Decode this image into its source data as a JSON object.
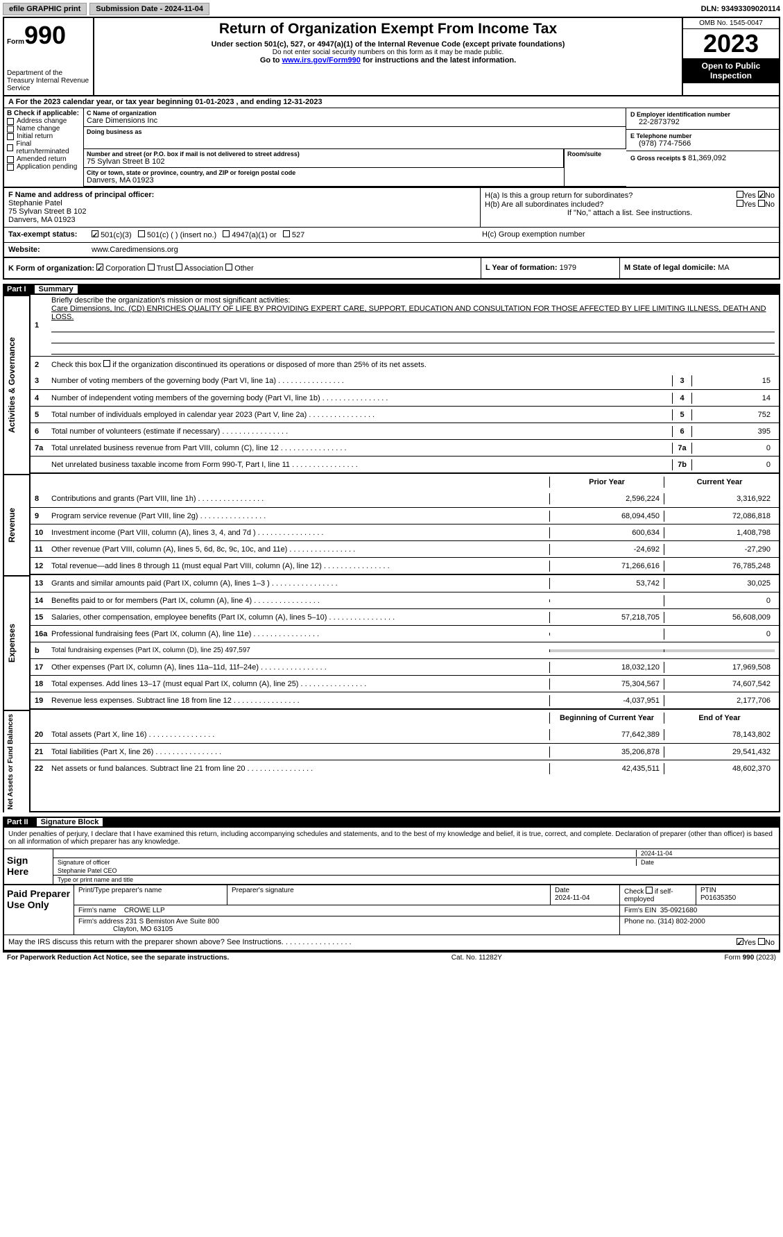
{
  "top": {
    "efile": "efile GRAPHIC print",
    "sub_date": "Submission Date - 2024-11-04",
    "dln": "DLN: 93493309020114"
  },
  "header": {
    "form_label": "Form",
    "form_no": "990",
    "dept": "Department of the Treasury\nInternal Revenue Service",
    "title": "Return of Organization Exempt From Income Tax",
    "sub1": "Under section 501(c), 527, or 4947(a)(1) of the Internal Revenue Code (except private foundations)",
    "sub2": "Do not enter social security numbers on this form as it may be made public.",
    "sub3_pre": "Go to ",
    "sub3_link": "www.irs.gov/Form990",
    "sub3_post": " for instructions and the latest information.",
    "omb": "OMB No. 1545-0047",
    "year": "2023",
    "open": "Open to Public Inspection"
  },
  "lineA": "A For the 2023 calendar year, or tax year beginning 01-01-2023   , and ending 12-31-2023",
  "B": {
    "label": "B Check if applicable:",
    "items": [
      "Address change",
      "Name change",
      "Initial return",
      "Final return/terminated",
      "Amended return",
      "Application pending"
    ]
  },
  "C": {
    "name_label": "C Name of organization",
    "name": "Care Dimensions Inc",
    "dba_label": "Doing business as",
    "dba": "",
    "addr_label": "Number and street (or P.O. box if mail is not delivered to street address)",
    "addr": "75 Sylvan Street B 102",
    "room_label": "Room/suite",
    "city_label": "City or town, state or province, country, and ZIP or foreign postal code",
    "city": "Danvers, MA  01923"
  },
  "D": {
    "ein_label": "D Employer identification number",
    "ein": "22-2873792",
    "phone_label": "E Telephone number",
    "phone": "(978) 774-7566",
    "gross_label": "G Gross receipts $",
    "gross": "81,369,092"
  },
  "F": {
    "label": "F  Name and address of principal officer:",
    "name": "Stephanie Patel",
    "addr": "75 Sylvan Street B 102",
    "city": "Danvers, MA  01923"
  },
  "H": {
    "a": "H(a)  Is this a group return for subordinates?",
    "a_yes": "Yes",
    "a_no": "No",
    "b": "H(b)  Are all subordinates included?",
    "b_note": "If \"No,\" attach a list. See instructions.",
    "c": "H(c)  Group exemption number"
  },
  "I": {
    "label": "Tax-exempt status:",
    "opts": [
      "501(c)(3)",
      "501(c) (  ) (insert no.)",
      "4947(a)(1) or",
      "527"
    ]
  },
  "J": {
    "label": "Website:",
    "val": "www.Caredimensions.org"
  },
  "K": {
    "label": "K Form of organization:",
    "opts": [
      "Corporation",
      "Trust",
      "Association",
      "Other"
    ]
  },
  "L": {
    "label": "L Year of formation:",
    "val": "1979"
  },
  "M": {
    "label": "M State of legal domicile:",
    "val": "MA"
  },
  "partI": {
    "n": "Part I",
    "t": "Summary"
  },
  "s1": {
    "vert": "Activities & Governance",
    "l1": "Briefly describe the organization's mission or most significant activities:",
    "l1v": "Care Dimensions, Inc. (CD) ENRICHES QUALITY OF LIFE BY PROVIDING EXPERT CARE, SUPPORT, EDUCATION AND CONSULTATION FOR THOSE AFFECTED BY LIFE LIMITING ILLNESS, DEATH AND LOSS.",
    "l2": "Check this box      if the organization discontinued its operations or disposed of more than 25% of its net assets.",
    "rows": [
      {
        "n": "3",
        "t": "Number of voting members of the governing body (Part VI, line 1a)",
        "b": "3",
        "v": "15"
      },
      {
        "n": "4",
        "t": "Number of independent voting members of the governing body (Part VI, line 1b)",
        "b": "4",
        "v": "14"
      },
      {
        "n": "5",
        "t": "Total number of individuals employed in calendar year 2023 (Part V, line 2a)",
        "b": "5",
        "v": "752"
      },
      {
        "n": "6",
        "t": "Total number of volunteers (estimate if necessary)",
        "b": "6",
        "v": "395"
      },
      {
        "n": "7a",
        "t": "Total unrelated business revenue from Part VIII, column (C), line 12",
        "b": "7a",
        "v": "0"
      },
      {
        "n": "",
        "t": "Net unrelated business taxable income from Form 990-T, Part I, line 11",
        "b": "7b",
        "v": "0"
      }
    ]
  },
  "rev": {
    "vert": "Revenue",
    "hdr": {
      "py": "Prior Year",
      "cy": "Current Year"
    },
    "rows": [
      {
        "n": "8",
        "t": "Contributions and grants (Part VIII, line 1h)",
        "py": "2,596,224",
        "cy": "3,316,922"
      },
      {
        "n": "9",
        "t": "Program service revenue (Part VIII, line 2g)",
        "py": "68,094,450",
        "cy": "72,086,818"
      },
      {
        "n": "10",
        "t": "Investment income (Part VIII, column (A), lines 3, 4, and 7d )",
        "py": "600,634",
        "cy": "1,408,798"
      },
      {
        "n": "11",
        "t": "Other revenue (Part VIII, column (A), lines 5, 6d, 8c, 9c, 10c, and 11e)",
        "py": "-24,692",
        "cy": "-27,290"
      },
      {
        "n": "12",
        "t": "Total revenue—add lines 8 through 11 (must equal Part VIII, column (A), line 12)",
        "py": "71,266,616",
        "cy": "76,785,248"
      }
    ]
  },
  "exp": {
    "vert": "Expenses",
    "rows": [
      {
        "n": "13",
        "t": "Grants and similar amounts paid (Part IX, column (A), lines 1–3 )",
        "py": "53,742",
        "cy": "30,025"
      },
      {
        "n": "14",
        "t": "Benefits paid to or for members (Part IX, column (A), line 4)",
        "py": "",
        "cy": "0"
      },
      {
        "n": "15",
        "t": "Salaries, other compensation, employee benefits (Part IX, column (A), lines 5–10)",
        "py": "57,218,705",
        "cy": "56,608,009"
      },
      {
        "n": "16a",
        "t": "Professional fundraising fees (Part IX, column (A), line 11e)",
        "py": "",
        "cy": "0"
      },
      {
        "n": "b",
        "t": "Total fundraising expenses (Part IX, column (D), line 25) 497,597",
        "gray": true
      },
      {
        "n": "17",
        "t": "Other expenses (Part IX, column (A), lines 11a–11d, 11f–24e)",
        "py": "18,032,120",
        "cy": "17,969,508"
      },
      {
        "n": "18",
        "t": "Total expenses. Add lines 13–17 (must equal Part IX, column (A), line 25)",
        "py": "75,304,567",
        "cy": "74,607,542"
      },
      {
        "n": "19",
        "t": "Revenue less expenses. Subtract line 18 from line 12",
        "py": "-4,037,951",
        "cy": "2,177,706"
      }
    ]
  },
  "net": {
    "vert": "Net Assets or Fund Balances",
    "hdr": {
      "py": "Beginning of Current Year",
      "cy": "End of Year"
    },
    "rows": [
      {
        "n": "20",
        "t": "Total assets (Part X, line 16)",
        "py": "77,642,389",
        "cy": "78,143,802"
      },
      {
        "n": "21",
        "t": "Total liabilities (Part X, line 26)",
        "py": "35,206,878",
        "cy": "29,541,432"
      },
      {
        "n": "22",
        "t": "Net assets or fund balances. Subtract line 21 from line 20",
        "py": "42,435,511",
        "cy": "48,602,370"
      }
    ]
  },
  "partII": {
    "n": "Part II",
    "t": "Signature Block"
  },
  "sig": {
    "intro": "Under penalties of perjury, I declare that I have examined this return, including accompanying schedules and statements, and to the best of my knowledge and belief, it is true, correct, and complete. Declaration of preparer (other than officer) is based on all information of which preparer has any knowledge.",
    "sign_here": "Sign Here",
    "date": "2024-11-04",
    "sig_label": "Signature of officer",
    "name": "Stephanie Patel  CEO",
    "name_label": "Type or print name and title",
    "date_label": "Date"
  },
  "paid": {
    "label": "Paid Preparer Use Only",
    "prep_name_label": "Print/Type preparer's name",
    "prep_sig_label": "Preparer's signature",
    "date_label": "Date",
    "date": "2024-11-04",
    "check_label": "Check        if self-employed",
    "ptin_label": "PTIN",
    "ptin": "P01635350",
    "firm_name_label": "Firm's name",
    "firm_name": "CROWE LLP",
    "firm_ein_label": "Firm's EIN",
    "firm_ein": "35-0921680",
    "firm_addr_label": "Firm's address",
    "firm_addr": "231 S Bemiston Ave Suite 800",
    "firm_city": "Clayton, MO  63105",
    "phone_label": "Phone no.",
    "phone": "(314) 802-2000"
  },
  "discuss": {
    "q": "May the IRS discuss this return with the preparer shown above? See Instructions.",
    "yes": "Yes",
    "no": "No"
  },
  "footer": {
    "l": "For Paperwork Reduction Act Notice, see the separate instructions.",
    "c": "Cat. No. 11282Y",
    "r": "Form 990 (2023)"
  }
}
